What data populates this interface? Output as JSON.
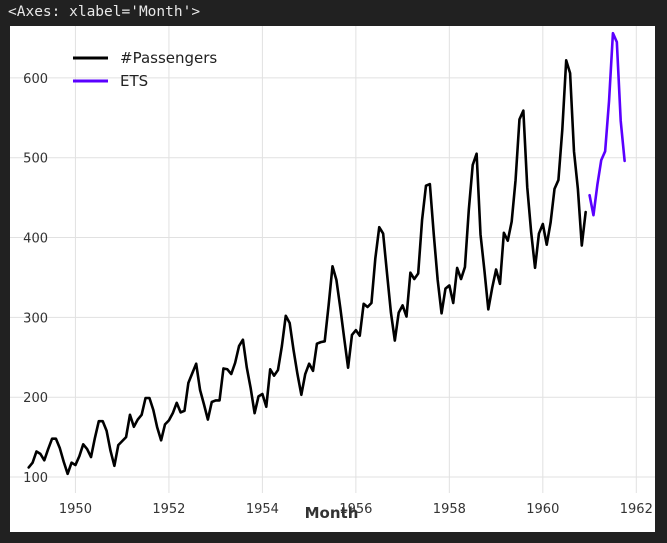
{
  "output_repr": "<Axes: xlabel='Month'>",
  "chart_data": {
    "type": "line",
    "xlabel": "Month",
    "ylabel": "",
    "xlim": [
      1948.6,
      1962.4
    ],
    "ylim": [
      80,
      665
    ],
    "x_ticks": [
      1950,
      1952,
      1954,
      1956,
      1958,
      1960,
      1962
    ],
    "y_ticks": [
      100,
      200,
      300,
      400,
      500,
      600
    ],
    "grid": true,
    "legend_position": "upper-left",
    "series": [
      {
        "name": "#Passengers",
        "color": "#000000",
        "start": 1949.0,
        "step_years": 0.08333333,
        "values": [
          112,
          118,
          132,
          129,
          121,
          135,
          148,
          148,
          136,
          119,
          104,
          118,
          115,
          126,
          141,
          135,
          125,
          149,
          170,
          170,
          158,
          133,
          114,
          140,
          145,
          150,
          178,
          163,
          172,
          178,
          199,
          199,
          184,
          162,
          146,
          166,
          171,
          180,
          193,
          181,
          183,
          218,
          230,
          242,
          209,
          191,
          172,
          194,
          196,
          196,
          236,
          235,
          229,
          243,
          264,
          272,
          237,
          211,
          180,
          201,
          204,
          188,
          235,
          227,
          234,
          264,
          302,
          293,
          259,
          229,
          203,
          229,
          242,
          233,
          267,
          269,
          270,
          315,
          364,
          347,
          312,
          274,
          237,
          278,
          284,
          277,
          317,
          313,
          318,
          374,
          413,
          405,
          355,
          306,
          271,
          306,
          315,
          301,
          356,
          348,
          355,
          422,
          465,
          467,
          404,
          347,
          305,
          336,
          340,
          318,
          362,
          348,
          363,
          435,
          491,
          505,
          404,
          359,
          310,
          337,
          360,
          342,
          406,
          396,
          420,
          472,
          548,
          559,
          463,
          407,
          362,
          405,
          417,
          391,
          419,
          461,
          472,
          535,
          622,
          606,
          508,
          461,
          390,
          432
        ]
      },
      {
        "name": "ETS",
        "color": "#5a00ff",
        "start": 1961.0,
        "step_years": 0.08333333,
        "values": [
          453,
          428,
          466,
          497,
          508,
          571,
          656,
          645,
          546,
          496
        ]
      }
    ]
  }
}
